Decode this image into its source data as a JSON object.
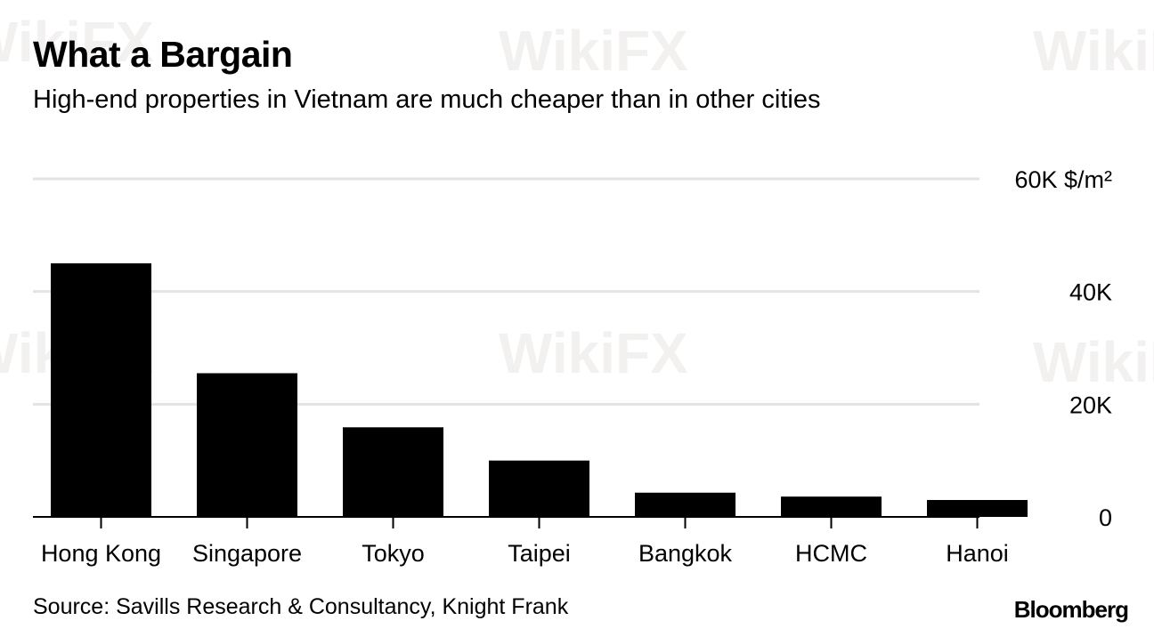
{
  "header": {
    "title": "What a Bargain",
    "subtitle": "High-end properties in Vietnam are much cheaper than in other cities"
  },
  "footer": {
    "source": "Source: Savills Research & Consultancy, Knight Frank",
    "brand": "Bloomberg"
  },
  "watermark": "WikiFX",
  "colors": {
    "bar": "#000000",
    "grid": "#e3e3e3",
    "axis": "#000000",
    "watermark": "#7a6450"
  },
  "chart_data": {
    "type": "bar",
    "categories": [
      "Hong Kong",
      "Singapore",
      "Tokyo",
      "Taipei",
      "Bangkok",
      "HCMC",
      "Hanoi"
    ],
    "values": [
      45000,
      25500,
      15900,
      10000,
      4300,
      3600,
      3000
    ],
    "title": "What a Bargain",
    "subtitle": "High-end properties in Vietnam are much cheaper than in other cities",
    "xlabel": "",
    "ylabel": "",
    "ylim": [
      0,
      60000
    ],
    "yticks": [
      0,
      20000,
      40000,
      60000
    ],
    "ytick_labels": [
      "0",
      "20K",
      "40K",
      "60K $/m²"
    ],
    "y_axis_position": "right",
    "grid": true,
    "legend": "none"
  }
}
